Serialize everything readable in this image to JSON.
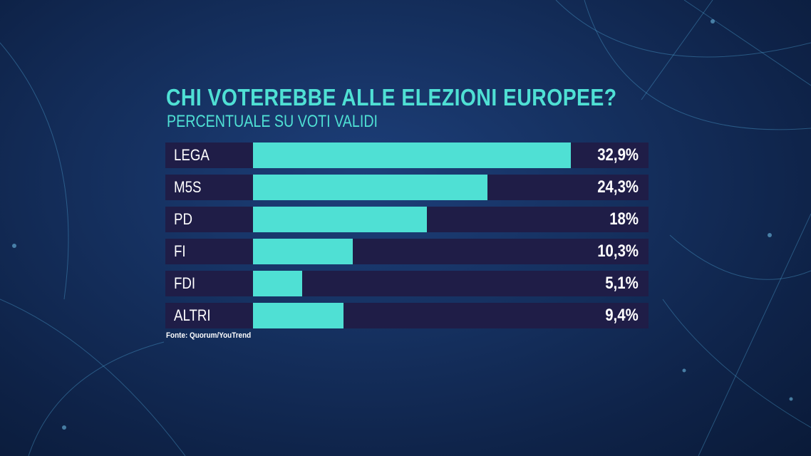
{
  "chart_data": {
    "type": "bar",
    "orientation": "horizontal",
    "title": "CHI VOTEREBBE ALLE ELEZIONI EUROPEE?",
    "subtitle": "PERCENTUALE SU VOTI VALIDI",
    "categories": [
      "LEGA",
      "M5S",
      "PD",
      "FI",
      "FDI",
      "ALTRI"
    ],
    "values": [
      32.9,
      24.3,
      18,
      10.3,
      5.1,
      9.4
    ],
    "value_labels": [
      "32,9%",
      "24,3%",
      "18%",
      "10,3%",
      "5,1%",
      "9,4%"
    ],
    "unit": "%",
    "xlim": [
      0,
      40
    ],
    "grid": false,
    "legend": "none",
    "source": "Fonte: Quorum/YouTrend",
    "colors": {
      "bar": "#4fe0d4",
      "track": "#1f1d47",
      "title": "#4fe0d4",
      "text": "#ffffff"
    }
  }
}
